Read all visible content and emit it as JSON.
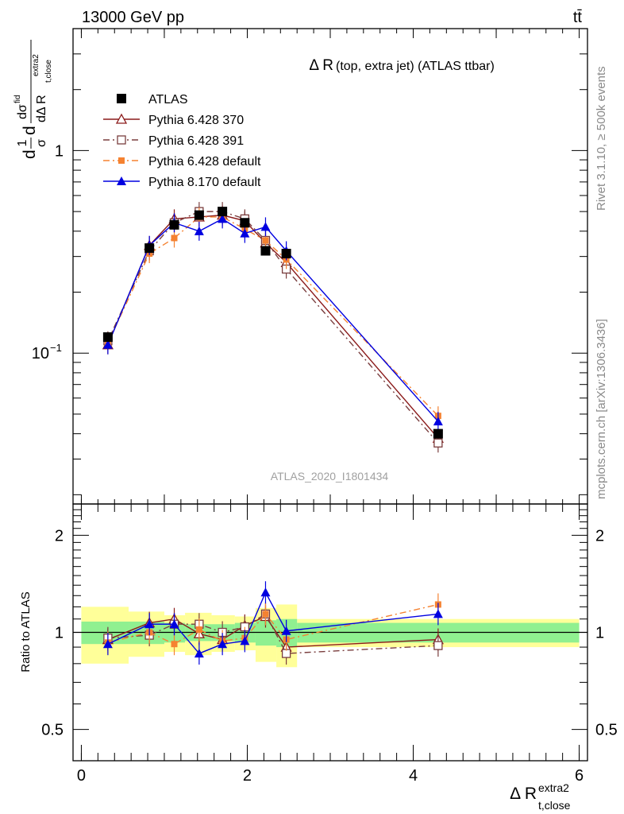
{
  "header": {
    "left": "13000 GeV pp",
    "right": "tt̄"
  },
  "side_labels": {
    "rivet": "Rivet 3.1.10, ≥ 500k events",
    "mcplots": "mcplots.cern.ch [arXiv:1306.3436]"
  },
  "chart_data": [
    {
      "type": "line",
      "panel": "main",
      "title": "Δ R (top, extra jet) (ATLAS ttbar)",
      "title_main": "Δ R",
      "title_rest": "(top, extra jet) (ATLAS ttbar)",
      "watermark": "ATLAS_2020_I1801434",
      "y_scale": "log",
      "ylim": [
        0.018,
        4.0
      ],
      "xlim": [
        -0.1,
        6.1
      ],
      "y_ticks": [
        {
          "value": 0.1,
          "label": "10",
          "sup": "−1"
        },
        {
          "value": 1,
          "label": "1",
          "sup": ""
        }
      ],
      "ylabel": {
        "part1": "d",
        "frac1_num": "1",
        "frac1_den": "σ",
        "part2": "d",
        "frac2_num": "dσ",
        "frac2_num_sup": "fid",
        "frac2_den": "dΔ R",
        "frac2_den_sub": "t,close",
        "frac2_den_sup": "extra2"
      },
      "legend_position": "top-left",
      "series": [
        {
          "name": "ATLAS",
          "color": "#000000",
          "marker": "filled-square",
          "x": [
            0.32,
            0.82,
            1.12,
            1.42,
            1.7,
            1.97,
            2.22,
            2.47,
            4.3
          ],
          "y": [
            0.12,
            0.33,
            0.43,
            0.48,
            0.5,
            0.44,
            0.32,
            0.31,
            0.04
          ]
        },
        {
          "name": "Pythia 6.428 370",
          "color": "#8b1a1a",
          "marker": "open-triangle",
          "line": "solid",
          "x": [
            0.32,
            0.82,
            1.12,
            1.42,
            1.7,
            1.97,
            2.22,
            2.47,
            4.3
          ],
          "y": [
            0.11,
            0.34,
            0.46,
            0.47,
            0.48,
            0.45,
            0.35,
            0.28,
            0.038
          ]
        },
        {
          "name": "Pythia 6.428 391",
          "color": "#7a3e3e",
          "marker": "open-square",
          "line": "dash-dot",
          "x": [
            0.32,
            0.82,
            1.12,
            1.42,
            1.7,
            1.97,
            2.22,
            2.47,
            4.3
          ],
          "y": [
            0.115,
            0.32,
            0.44,
            0.5,
            0.5,
            0.46,
            0.36,
            0.26,
            0.036
          ]
        },
        {
          "name": "Pythia 6.428 default",
          "color": "#f58231",
          "marker": "filled-square-small",
          "line": "dash-dot",
          "x": [
            0.32,
            0.82,
            1.12,
            1.42,
            1.7,
            1.97,
            2.22,
            2.47,
            4.3
          ],
          "y": [
            0.112,
            0.31,
            0.37,
            0.47,
            0.47,
            0.41,
            0.36,
            0.29,
            0.049
          ]
        },
        {
          "name": "Pythia 8.170 default",
          "color": "#0000e0",
          "marker": "filled-triangle",
          "line": "solid",
          "x": [
            0.32,
            0.82,
            1.12,
            1.42,
            1.7,
            1.97,
            2.22,
            2.47,
            4.3
          ],
          "y": [
            0.11,
            0.34,
            0.44,
            0.4,
            0.46,
            0.39,
            0.42,
            0.32,
            0.046
          ]
        }
      ]
    },
    {
      "type": "line",
      "panel": "ratio",
      "ylabel": "Ratio to ATLAS",
      "xlabel_main": "Δ R",
      "xlabel_sub": "t,close",
      "xlabel_sup": "extra2",
      "y_scale": "log",
      "ylim": [
        0.4,
        2.5
      ],
      "xlim": [
        -0.1,
        6.1
      ],
      "x_ticks": [
        0,
        2,
        4,
        6
      ],
      "y_ticks": [
        {
          "value": 0.5,
          "label": "0.5"
        },
        {
          "value": 1,
          "label": "1"
        },
        {
          "value": 2,
          "label": "2"
        }
      ],
      "bands": {
        "inner_color": "#90f090",
        "outer_color": "#ffff99",
        "edges": [
          0.0,
          0.57,
          1.0,
          1.25,
          1.57,
          1.85,
          2.1,
          2.35,
          2.6,
          6.0
        ],
        "inner_half": [
          0.08,
          0.08,
          0.07,
          0.06,
          0.06,
          0.07,
          0.09,
          0.1,
          0.07
        ],
        "outer_half": [
          0.2,
          0.16,
          0.13,
          0.15,
          0.13,
          0.12,
          0.19,
          0.22,
          0.1
        ]
      },
      "series": [
        {
          "name": "Pythia 6.428 370",
          "color": "#8b1a1a",
          "marker": "open-triangle",
          "line": "solid",
          "x": [
            0.32,
            0.82,
            1.12,
            1.42,
            1.7,
            1.97,
            2.22,
            2.47,
            4.3
          ],
          "y": [
            0.95,
            1.07,
            1.1,
            0.99,
            0.95,
            1.05,
            1.12,
            0.9,
            0.95
          ]
        },
        {
          "name": "Pythia 6.428 391",
          "color": "#7a3e3e",
          "marker": "open-square",
          "line": "dash-dot",
          "x": [
            0.32,
            0.82,
            1.12,
            1.42,
            1.7,
            1.97,
            2.22,
            2.47,
            4.3
          ],
          "y": [
            0.96,
            0.98,
            1.06,
            1.06,
            1.0,
            1.04,
            1.14,
            0.86,
            0.91
          ]
        },
        {
          "name": "Pythia 6.428 default",
          "color": "#f58231",
          "marker": "filled-square-small",
          "line": "dash-dot",
          "x": [
            0.32,
            0.82,
            1.12,
            1.42,
            1.7,
            1.97,
            2.22,
            2.47,
            4.3
          ],
          "y": [
            0.93,
            1.0,
            0.92,
            1.02,
            0.94,
            0.96,
            1.14,
            0.95,
            1.22
          ]
        },
        {
          "name": "Pythia 8.170 default",
          "color": "#0000e0",
          "marker": "filled-triangle",
          "line": "solid",
          "x": [
            0.32,
            0.82,
            1.12,
            1.42,
            1.7,
            1.97,
            2.22,
            2.47,
            4.3
          ],
          "y": [
            0.92,
            1.06,
            1.06,
            0.86,
            0.92,
            0.94,
            1.33,
            1.01,
            1.14
          ]
        }
      ]
    }
  ]
}
